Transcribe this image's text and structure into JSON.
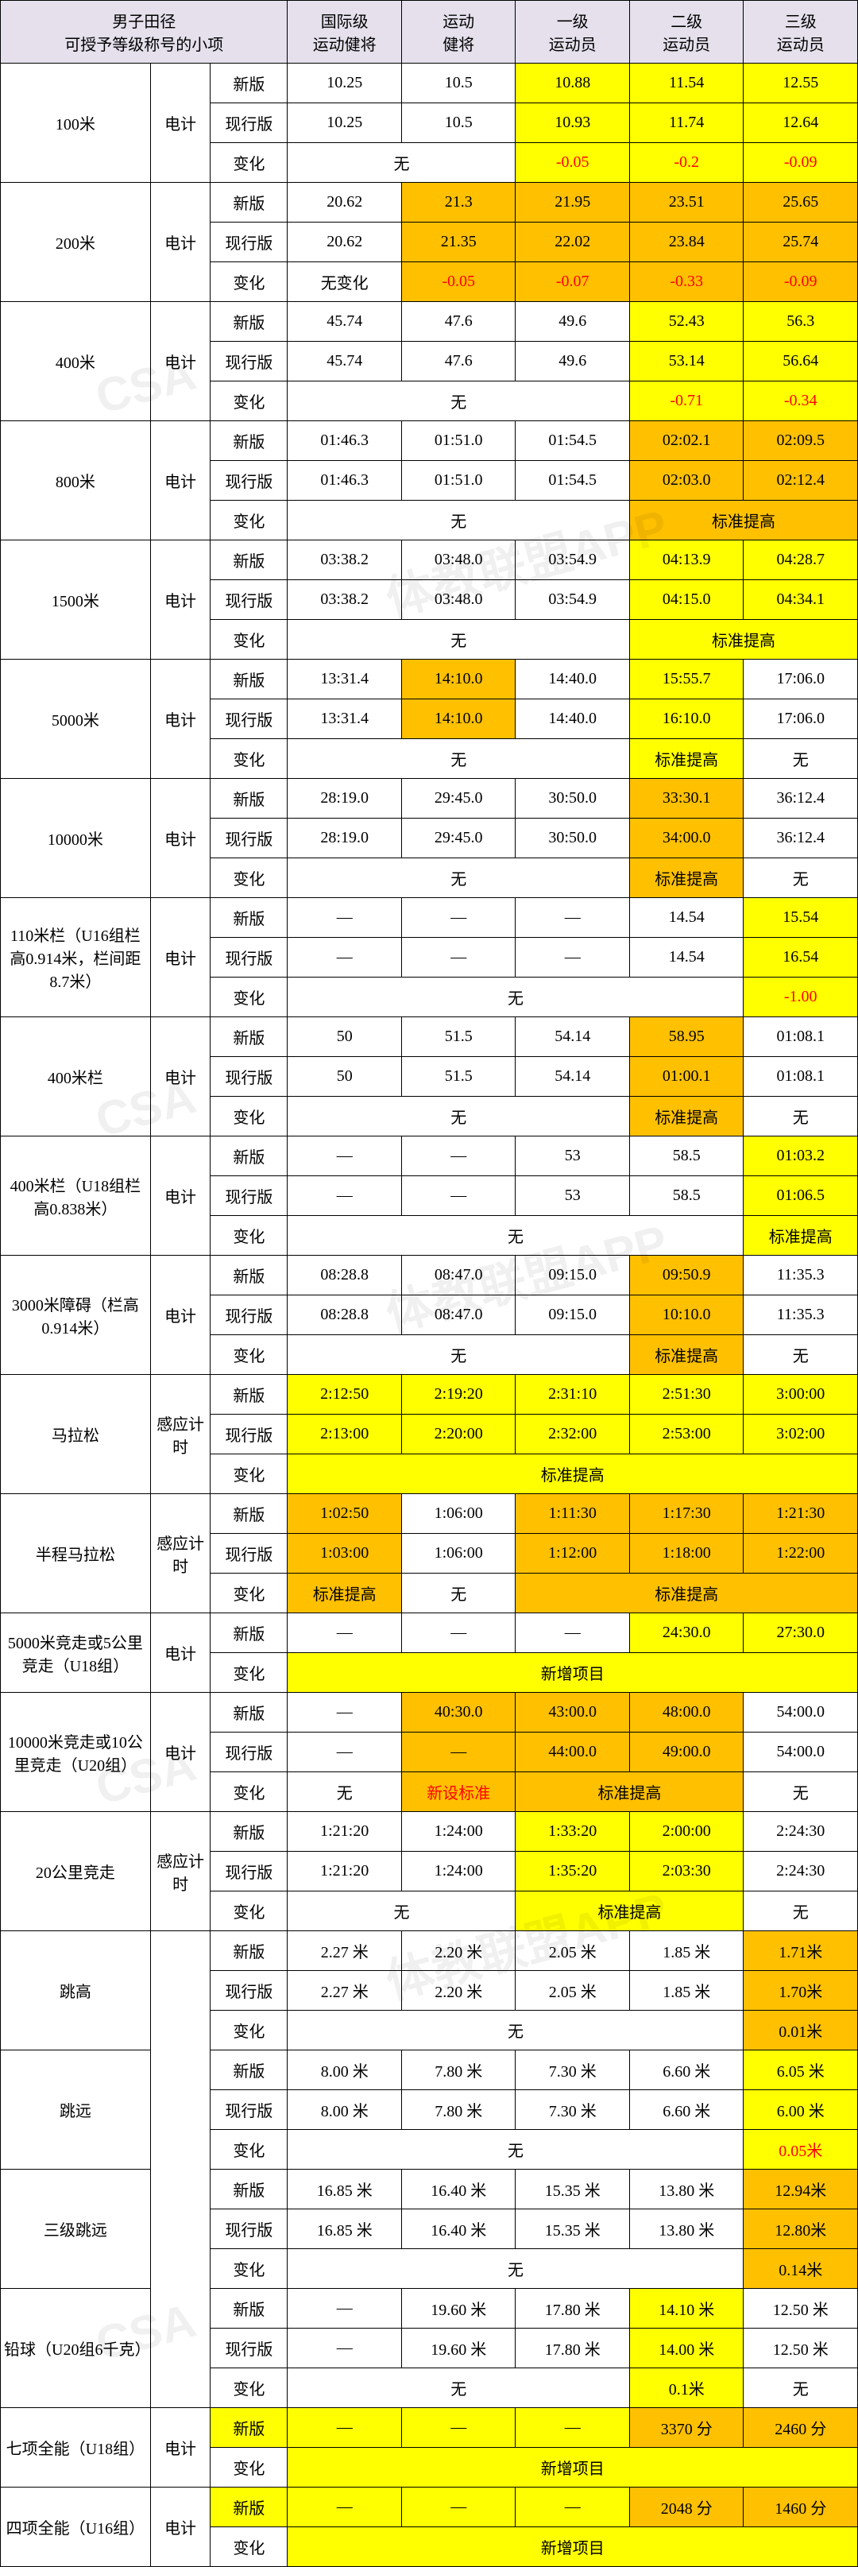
{
  "title_l1": "男子田径",
  "title_l2": "可授予等级称号的小项",
  "cols": [
    "国际级运动健将",
    "运动健将",
    "一级运动员",
    "二级运动员",
    "三级运动员"
  ],
  "sub_new": "新版",
  "sub_cur": "现行版",
  "sub_chg": "变化",
  "timing_elec": "电计",
  "timing_sens": "感应计时",
  "txt_none": "无",
  "txt_nochange": "无变化",
  "txt_std_raise": "标准提高",
  "txt_new_event": "新增项目",
  "txt_new_std": "新设标准",
  "dash": "—",
  "ev": [
    {
      "name": "100米",
      "t": "电计",
      "rows": [
        [
          "new",
          [
            "10.25",
            "10.5",
            "10.88",
            "11.54",
            "12.55"
          ],
          [
            "",
            "",
            "yellow",
            "yellow",
            "yellow"
          ]
        ],
        [
          "cur",
          [
            "10.25",
            "10.5",
            "10.93",
            "11.74",
            "12.64"
          ],
          [
            "",
            "",
            "yellow",
            "yellow",
            "yellow"
          ]
        ],
        [
          "chg_s",
          [
            "无",
            "-0.05",
            "-0.2",
            "-0.09"
          ],
          [
            2,
            1,
            1,
            1
          ],
          [
            "",
            "yellow red-txt",
            "yellow red-txt",
            "yellow red-txt"
          ]
        ]
      ]
    },
    {
      "name": "200米",
      "t": "电计",
      "rows": [
        [
          "new",
          [
            "20.62",
            "21.3",
            "21.95",
            "23.51",
            "25.65"
          ],
          [
            "",
            "gold",
            "gold",
            "gold",
            "gold"
          ]
        ],
        [
          "cur",
          [
            "20.62",
            "21.35",
            "22.02",
            "23.84",
            "25.74"
          ],
          [
            "",
            "gold",
            "gold",
            "gold",
            "gold"
          ]
        ],
        [
          "chg_s",
          [
            "无变化",
            "-0.05",
            "-0.07",
            "-0.33",
            "-0.09"
          ],
          [
            1,
            1,
            1,
            1,
            1
          ],
          [
            "",
            "gold red-txt",
            "gold red-txt",
            "gold red-txt",
            "gold red-txt"
          ]
        ]
      ]
    },
    {
      "name": "400米",
      "t": "电计",
      "rows": [
        [
          "new",
          [
            "45.74",
            "47.6",
            "49.6",
            "52.43",
            "56.3"
          ],
          [
            "",
            "",
            "",
            "yellow",
            "yellow"
          ]
        ],
        [
          "cur",
          [
            "45.74",
            "47.6",
            "49.6",
            "53.14",
            "56.64"
          ],
          [
            "",
            "",
            "",
            "yellow",
            "yellow"
          ]
        ],
        [
          "chg_s",
          [
            "无",
            "-0.71",
            "-0.34"
          ],
          [
            3,
            1,
            1
          ],
          [
            "",
            "yellow red-txt",
            "yellow red-txt"
          ]
        ]
      ]
    },
    {
      "name": "800米",
      "t": "电计",
      "rows": [
        [
          "new",
          [
            "01:46.3",
            "01:51.0",
            "01:54.5",
            "02:02.1",
            "02:09.5"
          ],
          [
            "",
            "",
            "",
            "gold",
            "gold"
          ]
        ],
        [
          "cur",
          [
            "01:46.3",
            "01:51.0",
            "01:54.5",
            "02:03.0",
            "02:12.4"
          ],
          [
            "",
            "",
            "",
            "gold",
            "gold"
          ]
        ],
        [
          "chg_s",
          [
            "无",
            "标准提高"
          ],
          [
            3,
            2
          ],
          [
            "",
            "gold"
          ]
        ]
      ]
    },
    {
      "name": "1500米",
      "t": "电计",
      "rows": [
        [
          "new",
          [
            "03:38.2",
            "03:48.0",
            "03:54.9",
            "04:13.9",
            "04:28.7"
          ],
          [
            "",
            "",
            "",
            "yellow",
            "yellow"
          ]
        ],
        [
          "cur",
          [
            "03:38.2",
            "03:48.0",
            "03:54.9",
            "04:15.0",
            "04:34.1"
          ],
          [
            "",
            "",
            "",
            "yellow",
            "yellow"
          ]
        ],
        [
          "chg_s",
          [
            "无",
            "标准提高"
          ],
          [
            3,
            2
          ],
          [
            "",
            "yellow"
          ]
        ]
      ]
    },
    {
      "name": "5000米",
      "t": "电计",
      "rows": [
        [
          "new",
          [
            "13:31.4",
            "14:10.0",
            "14:40.0",
            "15:55.7",
            "17:06.0"
          ],
          [
            "",
            "gold",
            "",
            "yellow",
            ""
          ]
        ],
        [
          "cur",
          [
            "13:31.4",
            "14:10.0",
            "14:40.0",
            "16:10.0",
            "17:06.0"
          ],
          [
            "",
            "gold",
            "",
            "yellow",
            ""
          ]
        ],
        [
          "chg_s",
          [
            "无",
            "标准提高",
            "无"
          ],
          [
            3,
            1,
            1
          ],
          [
            "",
            "yellow",
            ""
          ]
        ]
      ]
    },
    {
      "name": "10000米",
      "t": "电计",
      "rows": [
        [
          "new",
          [
            "28:19.0",
            "29:45.0",
            "30:50.0",
            "33:30.1",
            "36:12.4"
          ],
          [
            "",
            "",
            "",
            "gold",
            ""
          ]
        ],
        [
          "cur",
          [
            "28:19.0",
            "29:45.0",
            "30:50.0",
            "34:00.0",
            "36:12.4"
          ],
          [
            "",
            "",
            "",
            "gold",
            ""
          ]
        ],
        [
          "chg_s",
          [
            "无",
            "标准提高",
            "无"
          ],
          [
            3,
            1,
            1
          ],
          [
            "",
            "gold",
            ""
          ]
        ]
      ]
    },
    {
      "name": "110米栏（U16组栏高0.914米，栏间距8.7米）",
      "t": "电计",
      "tall": true,
      "rows": [
        [
          "new",
          [
            "—",
            "—",
            "—",
            "14.54",
            "15.54"
          ],
          [
            "",
            "",
            "",
            "",
            "yellow"
          ]
        ],
        [
          "cur",
          [
            "—",
            "—",
            "—",
            "14.54",
            "16.54"
          ],
          [
            "",
            "",
            "",
            "",
            "yellow"
          ]
        ],
        [
          "chg_s",
          [
            "无",
            "-1.00"
          ],
          [
            4,
            1
          ],
          [
            "",
            "yellow red-txt"
          ]
        ]
      ]
    },
    {
      "name": "400米栏",
      "t": "电计",
      "tall": true,
      "rows": [
        [
          "new",
          [
            "50",
            "51.5",
            "54.14",
            "58.95",
            "01:08.1"
          ],
          [
            "",
            "",
            "",
            "gold",
            ""
          ]
        ],
        [
          "cur",
          [
            "50",
            "51.5",
            "54.14",
            "01:00.1",
            "01:08.1"
          ],
          [
            "",
            "",
            "",
            "gold",
            ""
          ]
        ],
        [
          "chg_s",
          [
            "无",
            "标准提高",
            "无"
          ],
          [
            3,
            1,
            1
          ],
          [
            "",
            "gold",
            ""
          ]
        ]
      ]
    },
    {
      "name": "400米栏（U18组栏高0.838米）",
      "t": "电计",
      "tall": true,
      "rows": [
        [
          "new",
          [
            "—",
            "—",
            "53",
            "58.5",
            "01:03.2"
          ],
          [
            "",
            "",
            "",
            "",
            "yellow"
          ]
        ],
        [
          "cur",
          [
            "—",
            "—",
            "53",
            "58.5",
            "01:06.5"
          ],
          [
            "",
            "",
            "",
            "",
            "yellow"
          ]
        ],
        [
          "chg_s",
          [
            "无",
            "标准提高"
          ],
          [
            4,
            1
          ],
          [
            "",
            "yellow"
          ]
        ]
      ]
    },
    {
      "name": "3000米障碍（栏高0.914米）",
      "t": "电计",
      "tall": true,
      "rows": [
        [
          "new",
          [
            "08:28.8",
            "08:47.0",
            "09:15.0",
            "09:50.9",
            "11:35.3"
          ],
          [
            "",
            "",
            "",
            "gold",
            ""
          ]
        ],
        [
          "cur",
          [
            "08:28.8",
            "08:47.0",
            "09:15.0",
            "10:10.0",
            "11:35.3"
          ],
          [
            "",
            "",
            "",
            "gold",
            ""
          ]
        ],
        [
          "chg_s",
          [
            "无",
            "标准提高",
            "无"
          ],
          [
            3,
            1,
            1
          ],
          [
            "",
            "gold",
            ""
          ]
        ]
      ]
    },
    {
      "name": "马拉松",
      "t": "感应计时",
      "rows": [
        [
          "new",
          [
            "2:12:50",
            "2:19:20",
            "2:31:10",
            "2:51:30",
            "3:00:00"
          ],
          [
            "yellow",
            "yellow",
            "yellow",
            "yellow",
            "yellow"
          ]
        ],
        [
          "cur",
          [
            "2:13:00",
            "2:20:00",
            "2:32:00",
            "2:53:00",
            "3:02:00"
          ],
          [
            "yellow",
            "yellow",
            "yellow",
            "yellow",
            "yellow"
          ]
        ],
        [
          "chg_s",
          [
            "标准提高"
          ],
          [
            5
          ],
          [
            "yellow"
          ]
        ]
      ]
    },
    {
      "name": "半程马拉松",
      "t": "感应计时",
      "tall": true,
      "rows": [
        [
          "new",
          [
            "1:02:50",
            "1:06:00",
            "1:11:30",
            "1:17:30",
            "1:21:30"
          ],
          [
            "gold",
            "",
            "gold",
            "gold",
            "gold"
          ]
        ],
        [
          "cur",
          [
            "1:03:00",
            "1:06:00",
            "1:12:00",
            "1:18:00",
            "1:22:00"
          ],
          [
            "gold",
            "",
            "gold",
            "gold",
            "gold"
          ]
        ],
        [
          "chg_s",
          [
            "标准提高",
            "无",
            "标准提高"
          ],
          [
            1,
            1,
            3
          ],
          [
            "gold",
            "",
            "gold"
          ]
        ]
      ]
    },
    {
      "name": "5000米竞走或5公里竞走（U18组）",
      "t": "电计",
      "rows": [
        [
          "new",
          [
            "—",
            "—",
            "—",
            "24:30.0",
            "27:30.0"
          ],
          [
            "",
            "",
            "",
            "yellow",
            "yellow"
          ]
        ],
        [
          "chg_s",
          [
            "新增项目"
          ],
          [
            5
          ],
          [
            "yellow"
          ]
        ]
      ]
    },
    {
      "name": "10000米竞走或10公里竞走（U20组）",
      "t": "电计",
      "rows": [
        [
          "new",
          [
            "—",
            "40:30.0",
            "43:00.0",
            "48:00.0",
            "54:00.0"
          ],
          [
            "",
            "gold",
            "gold",
            "gold",
            ""
          ]
        ],
        [
          "cur",
          [
            "—",
            "—",
            "44:00.0",
            "49:00.0",
            "54:00.0"
          ],
          [
            "",
            "gold",
            "gold",
            "gold",
            ""
          ]
        ],
        [
          "chg_s",
          [
            "无",
            "新设标准",
            "标准提高",
            "无"
          ],
          [
            1,
            1,
            2,
            1
          ],
          [
            "",
            "gold red-txt",
            "gold",
            ""
          ]
        ]
      ]
    },
    {
      "name": "20公里竞走",
      "t": "感应计时",
      "rows": [
        [
          "new",
          [
            "1:21:20",
            "1:24:00",
            "1:33:20",
            "2:00:00",
            "2:24:30"
          ],
          [
            "",
            "",
            "yellow",
            "yellow",
            ""
          ]
        ],
        [
          "cur",
          [
            "1:21:20",
            "1:24:00",
            "1:35:20",
            "2:03:30",
            "2:24:30"
          ],
          [
            "",
            "",
            "yellow",
            "yellow",
            ""
          ]
        ],
        [
          "chg_s",
          [
            "无",
            "标准提高",
            "无"
          ],
          [
            2,
            2,
            1
          ],
          [
            "",
            "yellow",
            ""
          ]
        ]
      ]
    }
  ],
  "field_group_timing": "",
  "field": [
    {
      "name": "跳高",
      "rows": [
        [
          "new",
          [
            "2.27 米",
            "2.20 米",
            "2.05 米",
            "1.85 米",
            "1.71米"
          ],
          [
            "",
            "",
            "",
            "",
            "gold"
          ]
        ],
        [
          "cur",
          [
            "2.27 米",
            "2.20 米",
            "2.05 米",
            "1.85 米",
            "1.70米"
          ],
          [
            "",
            "",
            "",
            "",
            "gold"
          ]
        ],
        [
          "chg_s",
          [
            "无",
            "0.01米"
          ],
          [
            4,
            1
          ],
          [
            "",
            "gold"
          ]
        ]
      ]
    },
    {
      "name": "跳远",
      "rows": [
        [
          "new",
          [
            "8.00 米",
            "7.80 米",
            "7.30 米",
            "6.60 米",
            "6.05 米"
          ],
          [
            "",
            "",
            "",
            "",
            "yellow"
          ]
        ],
        [
          "cur",
          [
            "8.00 米",
            "7.80 米",
            "7.30 米",
            "6.60 米",
            "6.00 米"
          ],
          [
            "",
            "",
            "",
            "",
            "yellow"
          ]
        ],
        [
          "chg_s",
          [
            "无",
            "0.05米"
          ],
          [
            4,
            1
          ],
          [
            "",
            "yellow red-txt"
          ]
        ]
      ]
    },
    {
      "name": "三级跳远",
      "rows": [
        [
          "new",
          [
            "16.85 米",
            "16.40 米",
            "15.35 米",
            "13.80 米",
            "12.94米"
          ],
          [
            "",
            "",
            "",
            "",
            "gold"
          ]
        ],
        [
          "cur",
          [
            "16.85 米",
            "16.40 米",
            "15.35 米",
            "13.80 米",
            "12.80米"
          ],
          [
            "",
            "",
            "",
            "",
            "gold"
          ]
        ],
        [
          "chg_s",
          [
            "无",
            "0.14米"
          ],
          [
            4,
            1
          ],
          [
            "",
            "gold"
          ]
        ]
      ]
    },
    {
      "name": "铅球（U20组6千克）",
      "rows": [
        [
          "new",
          [
            "—",
            "19.60 米",
            "17.80 米",
            "14.10 米",
            "12.50 米"
          ],
          [
            "",
            "",
            "",
            "yellow",
            ""
          ]
        ],
        [
          "cur",
          [
            "—",
            "19.60 米",
            "17.80 米",
            "14.00 米",
            "12.50 米"
          ],
          [
            "",
            "",
            "",
            "yellow",
            ""
          ]
        ],
        [
          "chg_s",
          [
            "无",
            "0.1米",
            "无"
          ],
          [
            3,
            1,
            1
          ],
          [
            "",
            "yellow",
            ""
          ]
        ]
      ]
    }
  ],
  "combo": [
    {
      "name": "七项全能（U18组）",
      "t": "电计",
      "rows": [
        [
          "new",
          [
            "—",
            "—",
            "—",
            "3370 分",
            "2460 分"
          ],
          "yellow-row",
          [
            "",
            "",
            "",
            "gold",
            "gold"
          ]
        ],
        [
          "chg_s",
          [
            "新增项目"
          ],
          [
            5
          ],
          [
            "yellow"
          ]
        ]
      ]
    },
    {
      "name": "四项全能（U16组）",
      "t": "电计",
      "rows": [
        [
          "new",
          [
            "—",
            "—",
            "—",
            "2048 分",
            "1460 分"
          ],
          "yellow-row",
          [
            "",
            "",
            "",
            "gold",
            "gold"
          ]
        ],
        [
          "chg_s",
          [
            "新增项目"
          ],
          [
            5
          ],
          [
            "yellow"
          ]
        ]
      ]
    }
  ],
  "styling": {
    "header_bg": "#e5e0ec",
    "yellow": "#ffff00",
    "gold": "#ffc000",
    "red_text": "#ff0000",
    "border": "#000000",
    "font_family": "SimSun",
    "font_size_pt": 15,
    "col_widths_pct": [
      17.5,
      7,
      9,
      13.3,
      13.3,
      13.3,
      13.3,
      13.3
    ]
  }
}
